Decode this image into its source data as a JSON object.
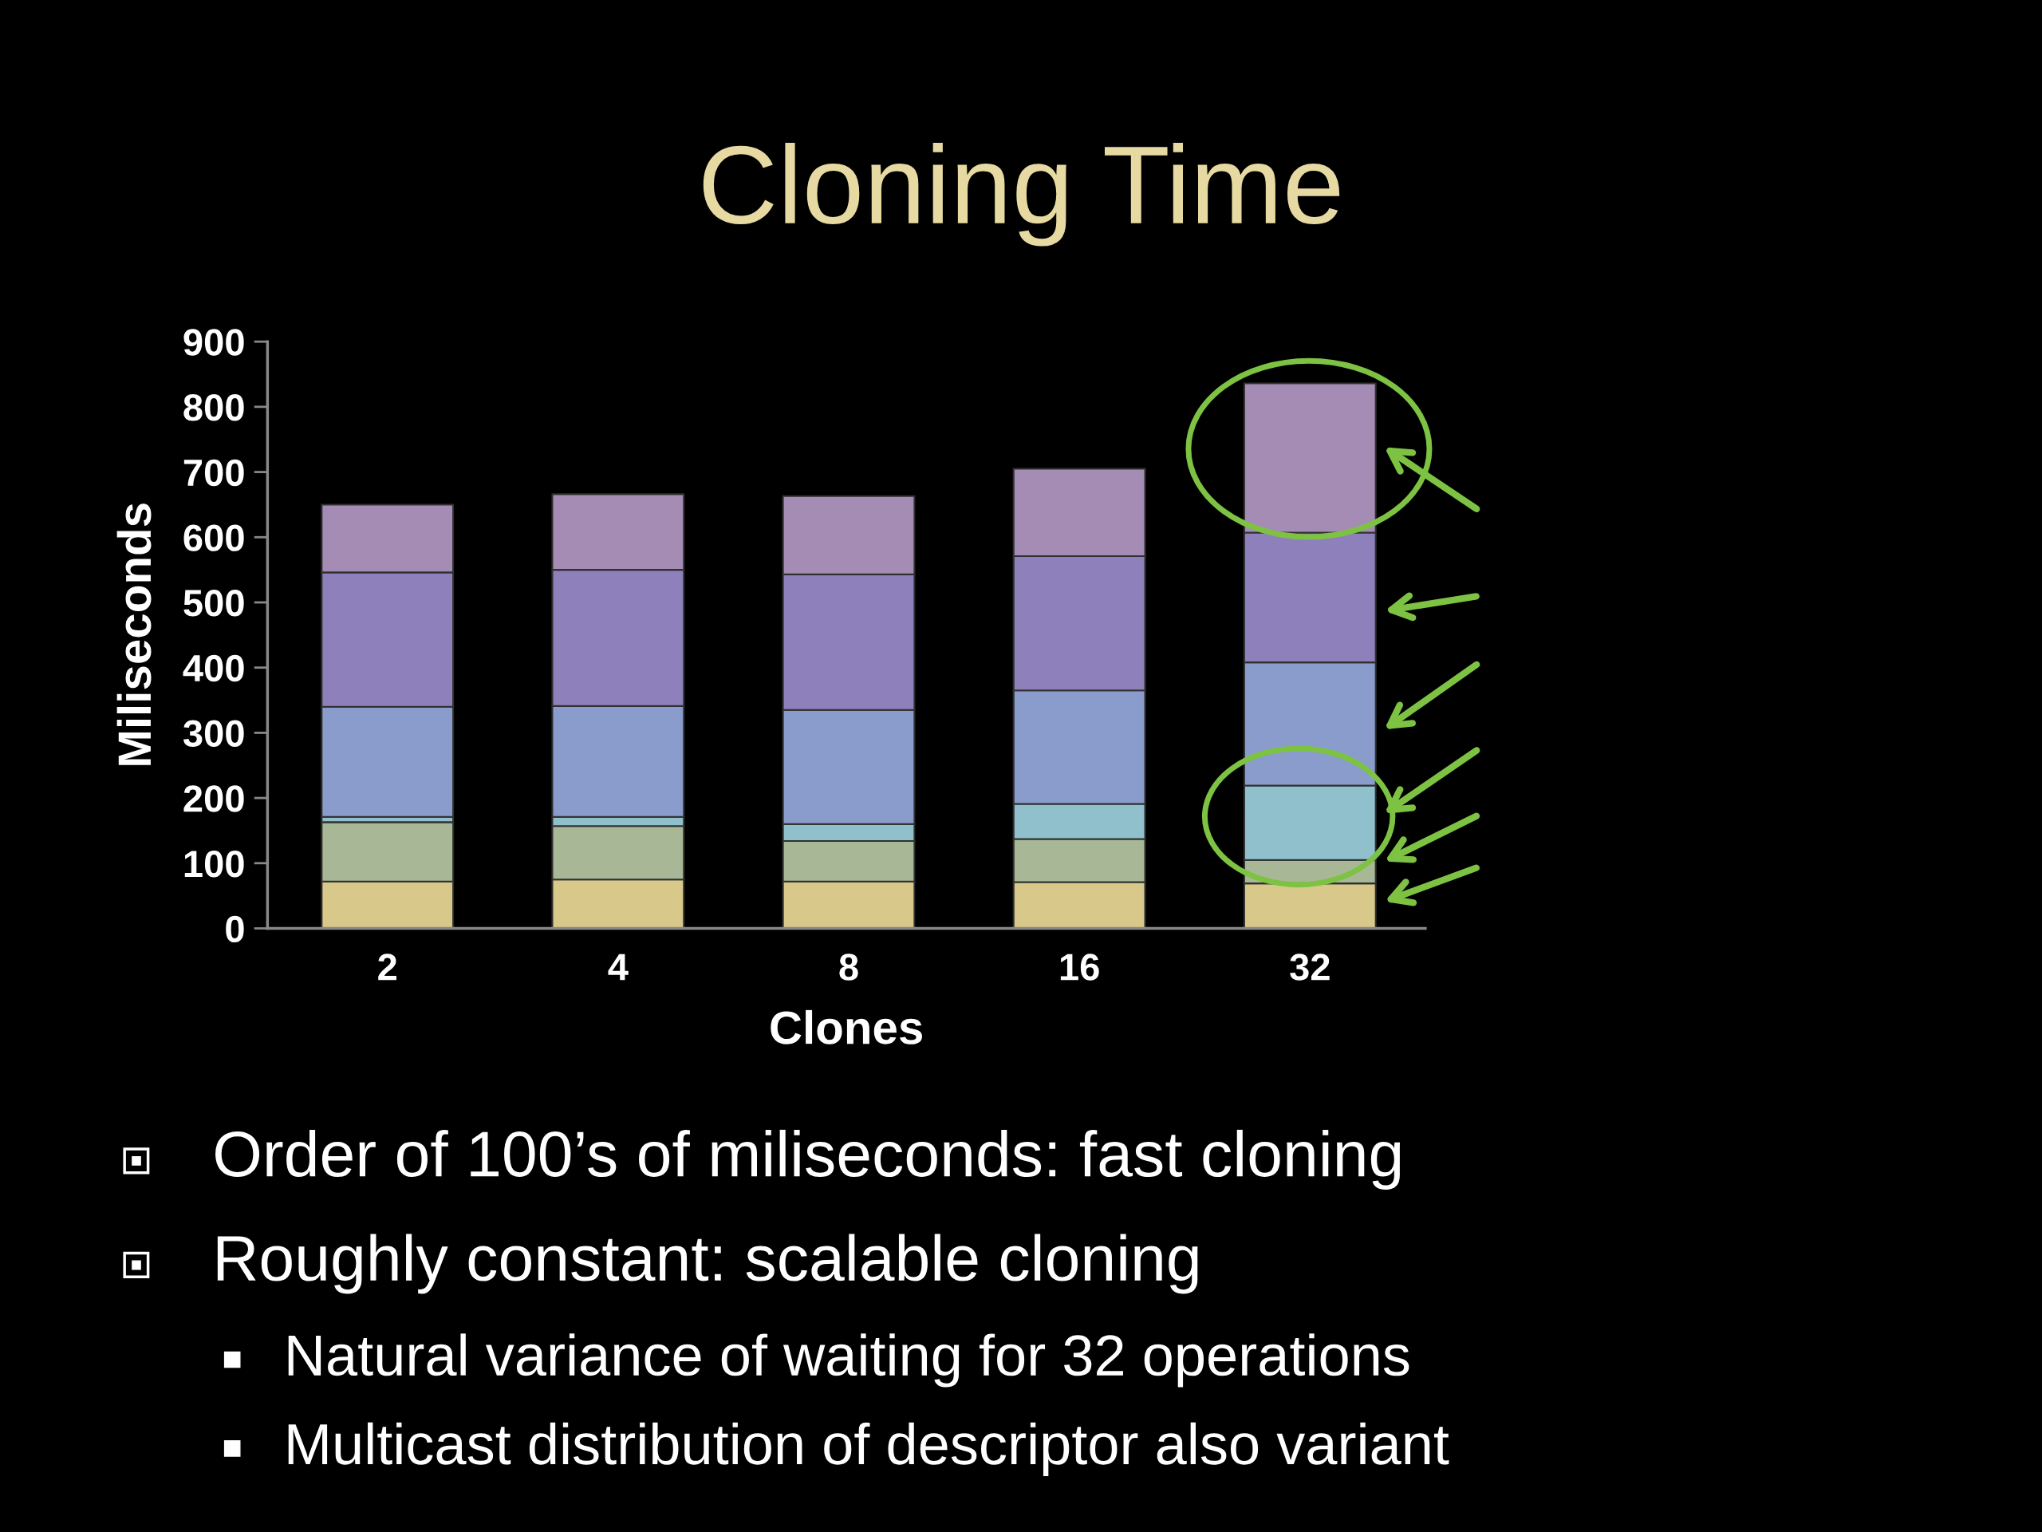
{
  "chart_data": {
    "type": "bar",
    "stacked": true,
    "title": "Cloning Time",
    "xlabel": "Clones",
    "ylabel": "Miliseconds",
    "categories": [
      "2",
      "4",
      "8",
      "16",
      "32"
    ],
    "series": [
      {
        "color": "#d8c98a",
        "values": [
          72,
          75,
          72,
          71,
          69
        ]
      },
      {
        "color": "#a8b896",
        "values": [
          91,
          82,
          62,
          66,
          36
        ]
      },
      {
        "color": "#8fc0cc",
        "values": [
          8,
          14,
          26,
          54,
          114
        ]
      },
      {
        "color": "#8a9ccc",
        "values": [
          169,
          170,
          175,
          174,
          189
        ]
      },
      {
        "color": "#8e80bb",
        "values": [
          206,
          209,
          208,
          206,
          199
        ]
      },
      {
        "color": "#a48cb4",
        "values": [
          104,
          116,
          120,
          134,
          229
        ]
      }
    ],
    "ylim": [
      0,
      900
    ],
    "yticks": [
      0,
      100,
      200,
      300,
      400,
      500,
      600,
      700,
      800,
      900
    ],
    "grid": false,
    "legend": false,
    "annotations": [
      "Order of 100’s of miliseconds: fast cloning",
      "Roughly constant: scalable cloning",
      "Natural variance of waiting for 32 operations",
      "Multicast distribution of descriptor also variant"
    ]
  }
}
